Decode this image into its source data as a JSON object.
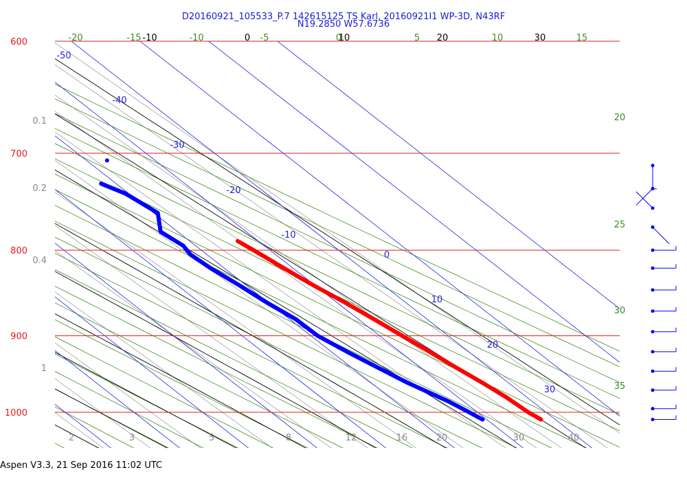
{
  "header": {
    "line1": "D20160921_105533_P.7 142615125 TS Karl, 20160921I1 WP-3D, N43RF",
    "line2": "N19.2850 W57.6736"
  },
  "footer": {
    "text": "Aspen V3.3, 21 Sep 2016  11:02 UTC"
  },
  "colors": {
    "isobar": "#e31a1a",
    "pressure_label": "#e31a1a",
    "isotherm": "#2121e0",
    "dry_adiabat": "#3c8c1e",
    "moist_adiabat": "#000000",
    "mixing_ratio": "#a0a0a0",
    "temperature": "#ff0000",
    "dewpoint": "#0000ff",
    "wind_barb": "#0000ff"
  },
  "chart_data": {
    "type": "skew-t",
    "pressure_levels": [
      "600",
      "700",
      "800",
      "900",
      "1000"
    ],
    "ylim": [
      600,
      1050
    ],
    "isotherm_labels": [
      "-50",
      "-40",
      "-30",
      "-20",
      "-10",
      "0",
      "10",
      "20",
      "30"
    ],
    "dry_adiabat_labels": [
      "-20",
      "-15",
      "-10",
      "-5",
      "0",
      "5",
      "10",
      "15",
      "20",
      "25",
      "30",
      "35"
    ],
    "moist_adiabat_labels": [
      "-10",
      "0",
      "10",
      "20",
      "30"
    ],
    "mixing_ratio_labels": [
      "2",
      "3",
      "5",
      "8",
      "12",
      "16",
      "20",
      "30",
      "40"
    ],
    "mixing_ratio_left_labels": [
      "0.1",
      "0.2",
      "0.4",
      "1"
    ],
    "series": [
      {
        "name": "temperature",
        "points": [
          {
            "p": 790,
            "t": 17.0
          },
          {
            "p": 800,
            "t": 17.6
          },
          {
            "p": 815,
            "t": 18.4
          },
          {
            "p": 830,
            "t": 19.2
          },
          {
            "p": 840,
            "t": 19.8
          },
          {
            "p": 860,
            "t": 21.2
          },
          {
            "p": 880,
            "t": 22.3
          },
          {
            "p": 900,
            "t": 23.3
          },
          {
            "p": 920,
            "t": 24.3
          },
          {
            "p": 940,
            "t": 25.2
          },
          {
            "p": 960,
            "t": 26.2
          },
          {
            "p": 980,
            "t": 27.0
          },
          {
            "p": 1000,
            "t": 27.4
          },
          {
            "p": 1010,
            "t": 27.9
          }
        ]
      },
      {
        "name": "dewpoint",
        "points": [
          {
            "p": 707,
            "t": 13.0
          },
          {
            "p": 730,
            "t": 7.8
          },
          {
            "p": 740,
            "t": 9.5
          },
          {
            "p": 760,
            "t": 10.6
          },
          {
            "p": 780,
            "t": 7.5
          },
          {
            "p": 795,
            "t": 8.2
          },
          {
            "p": 805,
            "t": 7.6
          },
          {
            "p": 820,
            "t": 8.0
          },
          {
            "p": 840,
            "t": 9.0
          },
          {
            "p": 860,
            "t": 9.8
          },
          {
            "p": 880,
            "t": 10.9
          },
          {
            "p": 900,
            "t": 11.0
          },
          {
            "p": 920,
            "t": 12.3
          },
          {
            "p": 940,
            "t": 13.8
          },
          {
            "p": 960,
            "t": 15.3
          },
          {
            "p": 985,
            "t": 17.8
          },
          {
            "p": 1000,
            "t": 18.8
          },
          {
            "p": 1010,
            "t": 19.4
          }
        ]
      }
    ],
    "wind_barbs": [
      {
        "p": 712,
        "dir": "S",
        "speed": 10
      },
      {
        "p": 735,
        "dir": "SW",
        "speed": 5
      },
      {
        "p": 755,
        "dir": "NW",
        "speed": 5
      },
      {
        "p": 775,
        "dir": "SE",
        "speed": 5
      },
      {
        "p": 800,
        "dir": "E",
        "speed": 10
      },
      {
        "p": 820,
        "dir": "E",
        "speed": 10
      },
      {
        "p": 845,
        "dir": "E",
        "speed": 10
      },
      {
        "p": 870,
        "dir": "E",
        "speed": 10
      },
      {
        "p": 895,
        "dir": "E",
        "speed": 10
      },
      {
        "p": 920,
        "dir": "E",
        "speed": 10
      },
      {
        "p": 945,
        "dir": "E",
        "speed": 10
      },
      {
        "p": 970,
        "dir": "E",
        "speed": 10
      },
      {
        "p": 995,
        "dir": "E",
        "speed": 10
      },
      {
        "p": 1010,
        "dir": "E",
        "speed": 10
      }
    ]
  }
}
